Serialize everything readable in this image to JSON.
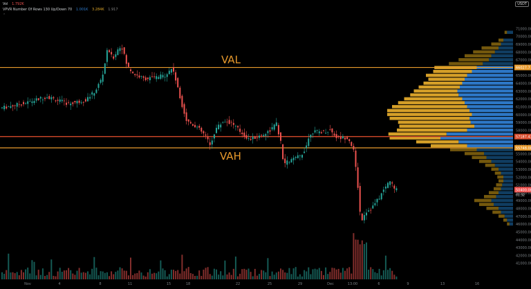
{
  "legend": {
    "line1_symbol": "Vol",
    "line1_value": "1.792K",
    "line2_name": "VPVR Number Of Rows 130 Up/Down 70",
    "line2_v1": "1.001K",
    "line2_v2": "3.284K",
    "line2_v3": "1.917"
  },
  "currency_button": "USDT",
  "annotations": {
    "val_label": "VAL",
    "vah_label": "VAH"
  },
  "price_badges": {
    "val": "66027.7",
    "poc": "57187.43",
    "vah": "55748.00",
    "last": "50400.00",
    "last_sub": "01:32"
  },
  "colors": {
    "up": "#26a69a",
    "down": "#ef5350",
    "val_line": "#e89a2c",
    "poc_line": "#d84a2a",
    "vp_up": "#1e6fb0",
    "vp_down": "#d4a017",
    "vp_va_up": "#2f7dd1",
    "vp_va_down": "#e0a82a"
  },
  "chart_data": {
    "type": "candlestick",
    "title": "",
    "y_ticks": [
      "71000.00",
      "70000.00",
      "69000.00",
      "68000.00",
      "67000.00",
      "66000.00",
      "65000.00",
      "64000.00",
      "63000.00",
      "62000.00",
      "61000.00",
      "60000.00",
      "59000.00",
      "58000.00",
      "57000.00",
      "56000.00",
      "55000.00",
      "54000.00",
      "53000.00",
      "52000.00",
      "51000.00",
      "50000.00",
      "49000.00",
      "48000.00",
      "47000.00",
      "46000.00",
      "45000.00",
      "44000.00",
      "43000.00",
      "42000.00",
      "41000.00"
    ],
    "ylim": [
      40000,
      72000
    ],
    "x_ticks": [
      "Nov",
      "4",
      "8",
      "11",
      "15",
      "18",
      "22",
      "25",
      "29",
      "Dec",
      "13:00",
      "6",
      "9",
      "13",
      "16"
    ],
    "levels": {
      "val": 66027.7,
      "poc": 57187.43,
      "vah": 55748
    },
    "price_path": [
      [
        0,
        60800
      ],
      [
        40,
        61500
      ],
      [
        70,
        62300
      ],
      [
        100,
        61400
      ],
      [
        125,
        61800
      ],
      [
        140,
        63000
      ],
      [
        150,
        64800
      ],
      [
        158,
        68500
      ],
      [
        165,
        67100
      ],
      [
        172,
        68300
      ],
      [
        178,
        68800
      ],
      [
        186,
        66200
      ],
      [
        196,
        65200
      ],
      [
        210,
        64600
      ],
      [
        225,
        64700
      ],
      [
        240,
        65000
      ],
      [
        252,
        66000
      ],
      [
        262,
        62300
      ],
      [
        272,
        59200
      ],
      [
        286,
        58500
      ],
      [
        300,
        57200
      ],
      [
        306,
        56000
      ],
      [
        314,
        58200
      ],
      [
        326,
        59200
      ],
      [
        338,
        58900
      ],
      [
        350,
        57800
      ],
      [
        362,
        56800
      ],
      [
        376,
        57200
      ],
      [
        390,
        57800
      ],
      [
        402,
        58800
      ],
      [
        408,
        56500
      ],
      [
        412,
        53700
      ],
      [
        424,
        54200
      ],
      [
        438,
        54800
      ],
      [
        444,
        55800
      ],
      [
        452,
        57800
      ],
      [
        468,
        57800
      ],
      [
        480,
        58000
      ],
      [
        490,
        57000
      ],
      [
        505,
        57100
      ],
      [
        513,
        55700
      ],
      [
        519,
        51500
      ],
      [
        524,
        46300
      ],
      [
        530,
        47500
      ],
      [
        540,
        48100
      ],
      [
        550,
        49300
      ],
      [
        558,
        50500
      ],
      [
        566,
        51600
      ],
      [
        573,
        50400
      ]
    ],
    "volume_profile": [
      [
        70500,
        0.05,
        0.02
      ],
      [
        69500,
        0.08,
        0.04
      ],
      [
        69000,
        0.1,
        0.08
      ],
      [
        68500,
        0.12,
        0.14
      ],
      [
        68000,
        0.15,
        0.18
      ],
      [
        67500,
        0.18,
        0.22
      ],
      [
        67000,
        0.2,
        0.25
      ],
      [
        66500,
        0.25,
        0.28
      ],
      [
        66000,
        0.3,
        0.35
      ],
      [
        65500,
        0.34,
        0.32
      ],
      [
        65000,
        0.38,
        0.34
      ],
      [
        64500,
        0.4,
        0.3
      ],
      [
        64000,
        0.42,
        0.32
      ],
      [
        63500,
        0.44,
        0.34
      ],
      [
        63000,
        0.46,
        0.36
      ],
      [
        62500,
        0.45,
        0.4
      ],
      [
        62000,
        0.42,
        0.48
      ],
      [
        61500,
        0.4,
        0.55
      ],
      [
        61000,
        0.38,
        0.62
      ],
      [
        60500,
        0.36,
        0.68
      ],
      [
        60000,
        0.34,
        0.7
      ],
      [
        59500,
        0.36,
        0.66
      ],
      [
        59000,
        0.35,
        0.6
      ],
      [
        58500,
        0.32,
        0.62
      ],
      [
        58000,
        0.38,
        0.58
      ],
      [
        57500,
        0.55,
        0.48
      ],
      [
        57000,
        0.6,
        0.42
      ],
      [
        56500,
        0.45,
        0.35
      ],
      [
        56000,
        0.38,
        0.3
      ],
      [
        55500,
        0.3,
        0.22
      ],
      [
        55000,
        0.24,
        0.16
      ],
      [
        54500,
        0.22,
        0.12
      ],
      [
        54000,
        0.18,
        0.1
      ],
      [
        53500,
        0.15,
        0.08
      ],
      [
        53000,
        0.12,
        0.06
      ],
      [
        52500,
        0.1,
        0.05
      ],
      [
        52000,
        0.08,
        0.05
      ],
      [
        51500,
        0.08,
        0.04
      ],
      [
        51000,
        0.09,
        0.05
      ],
      [
        50500,
        0.1,
        0.06
      ],
      [
        50000,
        0.12,
        0.08
      ],
      [
        49500,
        0.14,
        0.1
      ],
      [
        49000,
        0.18,
        0.14
      ],
      [
        48500,
        0.16,
        0.12
      ],
      [
        48000,
        0.12,
        0.1
      ],
      [
        47500,
        0.1,
        0.07
      ],
      [
        47000,
        0.07,
        0.05
      ],
      [
        46500,
        0.05,
        0.03
      ],
      [
        46000,
        0.03,
        0.02
      ]
    ]
  }
}
